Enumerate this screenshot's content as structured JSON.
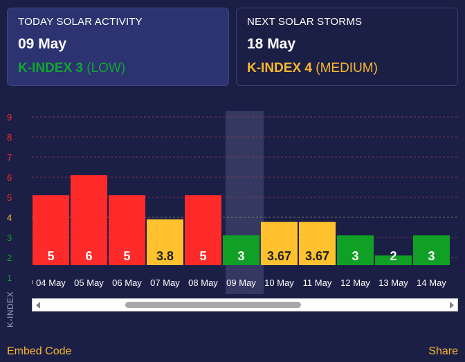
{
  "today": {
    "label": "TODAY SOLAR ACTIVITY",
    "date": "09 May",
    "kindex_label": "K-INDEX 3",
    "level": "(LOW)"
  },
  "next": {
    "label": "NEXT SOLAR STORMS",
    "date": "18 May",
    "kindex_label": "K-INDEX 4",
    "level": "(MEDIUM)"
  },
  "chart_data": {
    "type": "bar",
    "ylabel": "K-INDEX",
    "ylim": [
      1,
      9
    ],
    "y_ticks": [
      "1",
      "2",
      "3",
      "4",
      "5",
      "6",
      "7",
      "8",
      "9"
    ],
    "categories": [
      "04 May",
      "05 May",
      "06 May",
      "07 May",
      "08 May",
      "09 May",
      "10 May",
      "11 May",
      "12 May",
      "13 May",
      "14 May"
    ],
    "values": [
      5,
      6,
      5,
      3.8,
      5,
      3,
      3.67,
      3.67,
      3,
      2,
      3
    ],
    "value_labels": [
      "5",
      "6",
      "5",
      "3.8",
      "5",
      "3",
      "3.67",
      "3.67",
      "3",
      "2",
      "3"
    ],
    "highlighted_category": "09 May",
    "grid": true,
    "colors": {
      "high": "#ff2a2a",
      "medium": "#ffc22e",
      "low": "#0fa025"
    }
  },
  "footer": {
    "embed_label": "Embed Code",
    "share_label": "Share"
  },
  "icons": [
    "scroll-left-arrow-icon",
    "scroll-right-arrow-icon"
  ]
}
